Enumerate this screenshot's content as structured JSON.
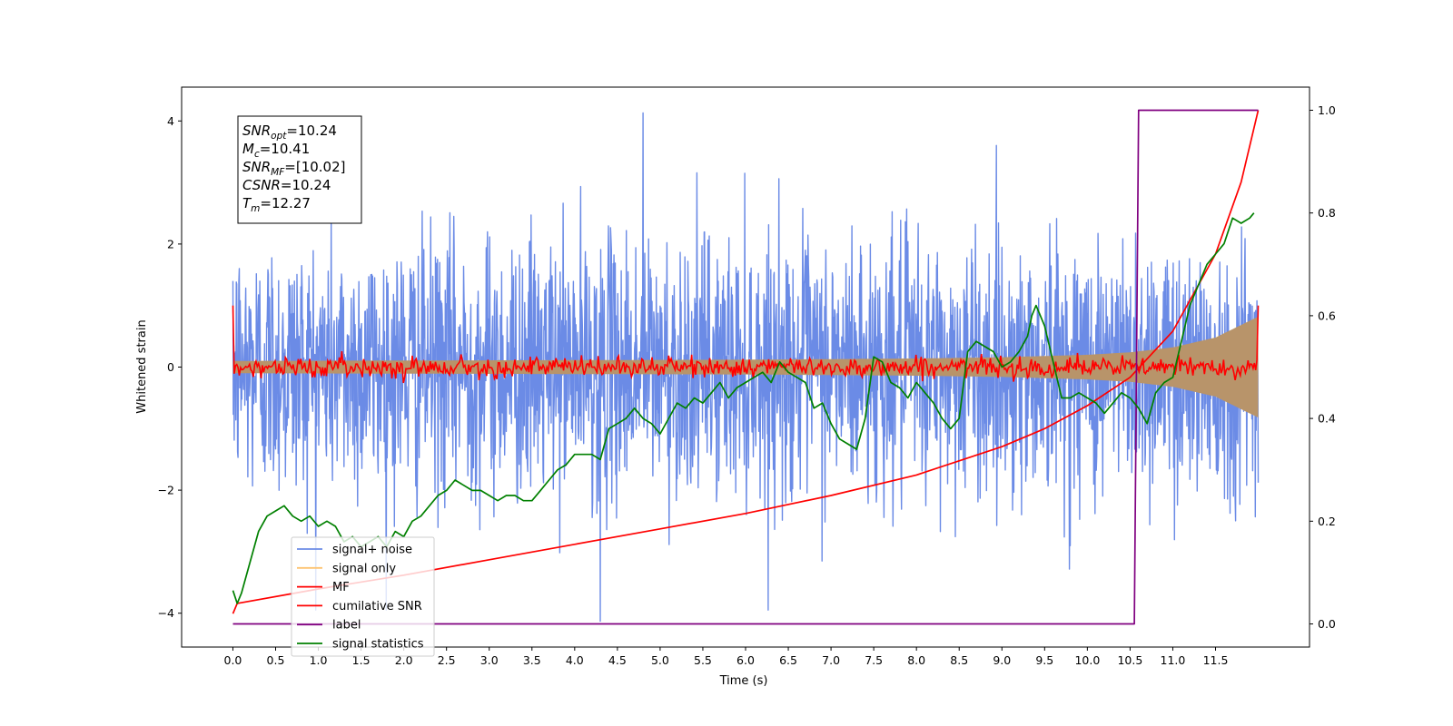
{
  "chart_data": {
    "type": "line",
    "xlabel": "Time (s)",
    "ylabel": "Whitened strain",
    "xlim": [
      -0.6,
      12.6
    ],
    "ylim_left": [
      -4.55,
      4.55
    ],
    "ylim_right": [
      -0.045,
      1.045
    ],
    "xticks": [
      0.0,
      0.5,
      1.0,
      1.5,
      2.0,
      2.5,
      3.0,
      3.5,
      4.0,
      4.5,
      5.0,
      5.5,
      6.0,
      6.5,
      7.0,
      7.5,
      8.0,
      8.5,
      9.0,
      9.5,
      10.0,
      10.5,
      11.0,
      11.5
    ],
    "xtick_labels": [
      "0.0",
      "0.5",
      "1.0",
      "1.5",
      "2.0",
      "2.5",
      "3.0",
      "3.5",
      "4.0",
      "4.5",
      "5.0",
      "5.5",
      "6.0",
      "6.5",
      "7.0",
      "7.5",
      "8.0",
      "8.5",
      "9.0",
      "9.5",
      "10.0",
      "10.5",
      "11.0",
      "11.5"
    ],
    "yticks_left": [
      -4,
      -2,
      0,
      2,
      4
    ],
    "ytick_labels_left": [
      "−4",
      "−2",
      "0",
      "2",
      "4"
    ],
    "yticks_right": [
      0.0,
      0.2,
      0.4,
      0.6,
      0.8,
      1.0
    ],
    "ytick_labels_right": [
      "0.0",
      "0.2",
      "0.4",
      "0.6",
      "0.8",
      "1.0"
    ],
    "grid": false,
    "legend_position": "lower-left",
    "info_box": {
      "lines": [
        {
          "base": "SNR",
          "sub": "opt",
          "value": "=10.24"
        },
        {
          "base": "M",
          "sub": "c",
          "value": "=10.41"
        },
        {
          "base": "SNR",
          "sub": "MF",
          "value": "=[10.02]"
        },
        {
          "base": "CSNR",
          "sub": "",
          "value": "=10.24"
        },
        {
          "base": "T",
          "sub": "m",
          "value": "=12.27"
        }
      ]
    },
    "series": [
      {
        "name": "signal+ noise",
        "axis": "left",
        "color": "#6b8be6",
        "description": "noise ~ N(0,1), t in [0, 12.0]",
        "noise_sigma": 1.0,
        "x_range": [
          0.0,
          12.0
        ],
        "extremes": [
          {
            "x": 4.3,
            "y": -4.13
          },
          {
            "x": 4.8,
            "y": 4.13
          }
        ]
      },
      {
        "name": "signal only",
        "axis": "left",
        "color": "#fdc472",
        "envelope": {
          "x": [
            0.0,
            6.0,
            8.0,
            9.0,
            10.0,
            10.5,
            11.0,
            11.5,
            12.0
          ],
          "amplitude": [
            0.1,
            0.12,
            0.14,
            0.16,
            0.2,
            0.24,
            0.32,
            0.48,
            0.82
          ]
        }
      },
      {
        "name": "MF",
        "axis": "left",
        "color": "#ff0000",
        "noise_sigma": 0.08,
        "endpoints": [
          {
            "x": 0.0,
            "y": 1.0
          },
          {
            "x": 12.0,
            "y": 1.0
          }
        ]
      },
      {
        "name": "cumilative SNR",
        "axis": "right",
        "color": "#ff0000",
        "x": [
          0.0,
          0.05,
          1.0,
          2.0,
          3.0,
          4.0,
          5.0,
          6.0,
          7.0,
          8.0,
          9.0,
          9.5,
          10.0,
          10.5,
          11.0,
          11.5,
          11.8,
          12.0
        ],
        "y": [
          0.02,
          0.04,
          0.068,
          0.095,
          0.125,
          0.155,
          0.185,
          0.215,
          0.25,
          0.29,
          0.345,
          0.38,
          0.425,
          0.48,
          0.57,
          0.72,
          0.86,
          1.0
        ]
      },
      {
        "name": "label",
        "axis": "right",
        "color": "#800080",
        "x": [
          0.0,
          10.55,
          10.6,
          12.0
        ],
        "y": [
          0.0,
          0.0,
          1.0,
          1.0
        ]
      },
      {
        "name": "signal statistics",
        "axis": "right",
        "color": "#008000",
        "x": [
          0.0,
          0.05,
          0.1,
          0.2,
          0.3,
          0.4,
          0.5,
          0.6,
          0.7,
          0.8,
          0.9,
          1.0,
          1.1,
          1.2,
          1.3,
          1.4,
          1.5,
          1.6,
          1.7,
          1.8,
          1.9,
          2.0,
          2.1,
          2.2,
          2.3,
          2.4,
          2.5,
          2.6,
          2.7,
          2.8,
          2.9,
          3.0,
          3.1,
          3.2,
          3.3,
          3.4,
          3.5,
          3.6,
          3.7,
          3.8,
          3.9,
          4.0,
          4.1,
          4.2,
          4.3,
          4.4,
          4.5,
          4.6,
          4.7,
          4.8,
          4.9,
          5.0,
          5.1,
          5.2,
          5.3,
          5.4,
          5.5,
          5.6,
          5.7,
          5.8,
          5.9,
          6.0,
          6.1,
          6.2,
          6.3,
          6.4,
          6.5,
          6.6,
          6.7,
          6.8,
          6.9,
          7.0,
          7.1,
          7.2,
          7.3,
          7.4,
          7.5,
          7.6,
          7.7,
          7.8,
          7.9,
          8.0,
          8.1,
          8.2,
          8.3,
          8.4,
          8.5,
          8.6,
          8.7,
          8.8,
          8.9,
          9.0,
          9.1,
          9.2,
          9.3,
          9.35,
          9.4,
          9.5,
          9.6,
          9.7,
          9.8,
          9.9,
          10.0,
          10.1,
          10.2,
          10.3,
          10.4,
          10.5,
          10.6,
          10.7,
          10.8,
          10.9,
          11.0,
          11.1,
          11.2,
          11.3,
          11.4,
          11.5,
          11.6,
          11.7,
          11.8,
          11.9,
          11.95
        ],
        "y": [
          0.065,
          0.04,
          0.06,
          0.12,
          0.18,
          0.21,
          0.22,
          0.23,
          0.21,
          0.2,
          0.21,
          0.19,
          0.2,
          0.19,
          0.16,
          0.17,
          0.15,
          0.16,
          0.17,
          0.15,
          0.18,
          0.17,
          0.2,
          0.21,
          0.23,
          0.25,
          0.26,
          0.28,
          0.27,
          0.26,
          0.26,
          0.25,
          0.24,
          0.25,
          0.25,
          0.24,
          0.24,
          0.26,
          0.28,
          0.3,
          0.31,
          0.33,
          0.33,
          0.33,
          0.32,
          0.38,
          0.39,
          0.4,
          0.42,
          0.4,
          0.39,
          0.37,
          0.4,
          0.43,
          0.42,
          0.44,
          0.43,
          0.45,
          0.47,
          0.44,
          0.46,
          0.47,
          0.48,
          0.49,
          0.47,
          0.51,
          0.49,
          0.48,
          0.47,
          0.42,
          0.43,
          0.39,
          0.36,
          0.35,
          0.34,
          0.4,
          0.52,
          0.51,
          0.47,
          0.46,
          0.44,
          0.47,
          0.45,
          0.43,
          0.4,
          0.38,
          0.4,
          0.53,
          0.55,
          0.54,
          0.53,
          0.5,
          0.51,
          0.53,
          0.56,
          0.6,
          0.62,
          0.58,
          0.51,
          0.44,
          0.44,
          0.45,
          0.44,
          0.43,
          0.41,
          0.43,
          0.45,
          0.44,
          0.42,
          0.39,
          0.45,
          0.47,
          0.48,
          0.55,
          0.62,
          0.66,
          0.7,
          0.72,
          0.74,
          0.79,
          0.78,
          0.79,
          0.8
        ]
      }
    ]
  }
}
